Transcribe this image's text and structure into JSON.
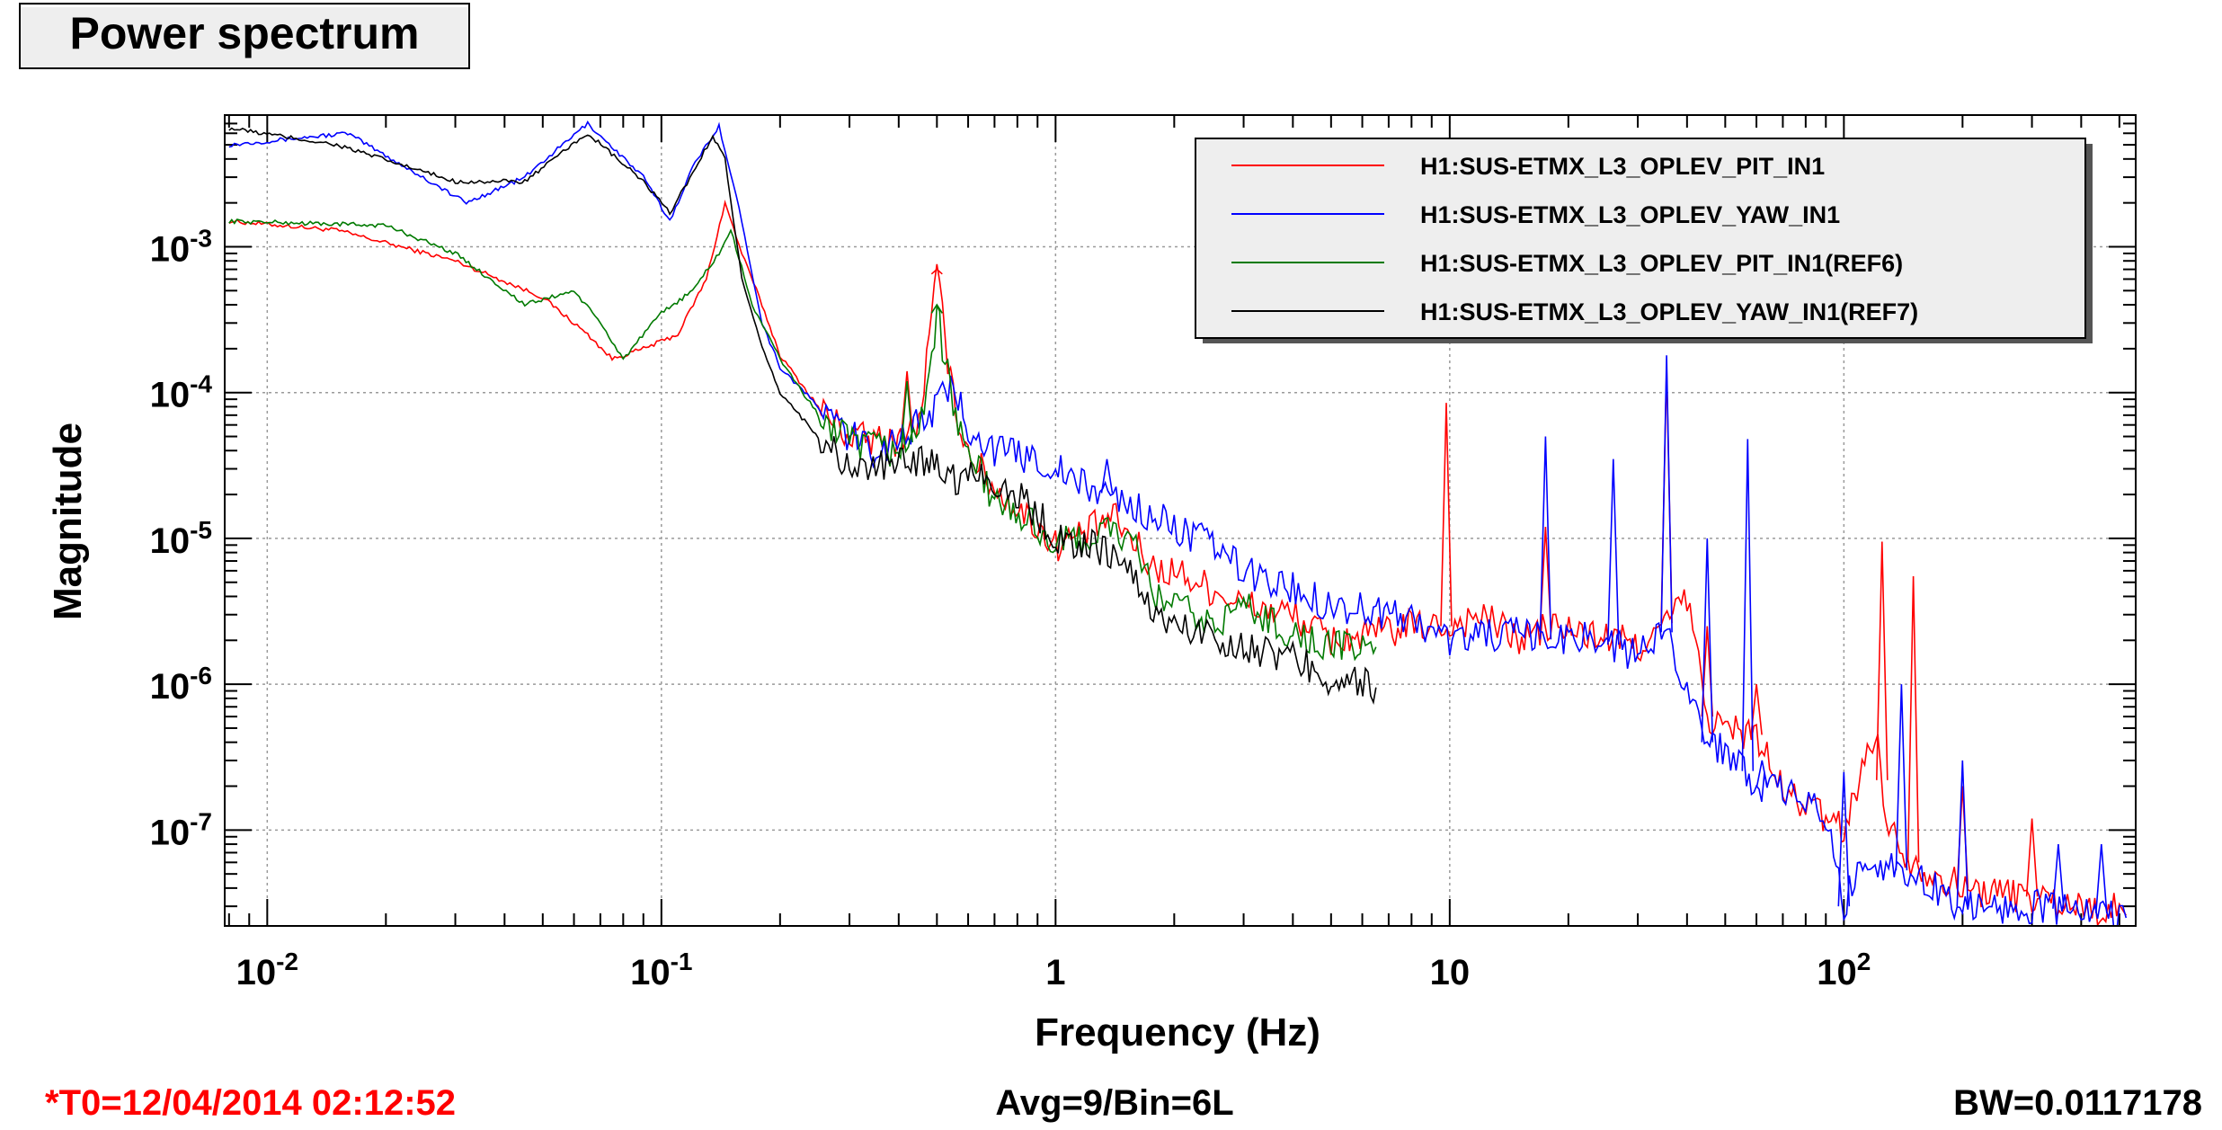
{
  "title": "Power spectrum",
  "footer": {
    "t0": "*T0=12/04/2014 02:12:52",
    "avg": "Avg=9/Bin=6L",
    "bw": "BW=0.0117178"
  },
  "colors": {
    "red": "#ff0000",
    "blue": "#0000ff",
    "green": "#007a00",
    "black": "#000000"
  },
  "chart_data": {
    "type": "line",
    "xlabel": "Frequency (Hz)",
    "ylabel": "Magnitude",
    "x_scale": "log",
    "y_scale": "log",
    "xlim": [
      0.0078,
      550
    ],
    "ylim": [
      2.2e-08,
      0.008
    ],
    "grid": true,
    "legend_position": "top-right",
    "x_ticks": [
      {
        "value": 0.01,
        "base": "10",
        "exp": "-2"
      },
      {
        "value": 0.1,
        "base": "10",
        "exp": "-1"
      },
      {
        "value": 1,
        "base": "1",
        "exp": ""
      },
      {
        "value": 10,
        "base": "10",
        "exp": ""
      },
      {
        "value": 100,
        "base": "10",
        "exp": "2"
      }
    ],
    "y_ticks": [
      {
        "value": 0.001,
        "base": "10",
        "exp": "-3"
      },
      {
        "value": 0.0001,
        "base": "10",
        "exp": "-4"
      },
      {
        "value": 1e-05,
        "base": "10",
        "exp": "-5"
      },
      {
        "value": 1e-06,
        "base": "10",
        "exp": "-6"
      },
      {
        "value": 1e-07,
        "base": "10",
        "exp": "-7"
      }
    ],
    "series": [
      {
        "name": "H1:SUS-ETMX_L3_OPLEV_PIT_IN1",
        "color": "#ff0000",
        "x": [
          0.008,
          0.015,
          0.03,
          0.05,
          0.065,
          0.075,
          0.09,
          0.11,
          0.13,
          0.145,
          0.16,
          0.18,
          0.2,
          0.25,
          0.3,
          0.38,
          0.45,
          0.5,
          0.55,
          0.6,
          0.7,
          0.9,
          1.0,
          1.2,
          1.4,
          1.6,
          1.8,
          2.0,
          2.5,
          3.0,
          4.0,
          5.0,
          6.5,
          8,
          10,
          12,
          15,
          18,
          22,
          27,
          30,
          35,
          40,
          45,
          50,
          60,
          70,
          80,
          90,
          100,
          120,
          130,
          150,
          200,
          300,
          400,
          500,
          520
        ],
        "y": [
          0.0015,
          0.0013,
          0.0008,
          0.00045,
          0.00025,
          0.00017,
          0.0002,
          0.00025,
          0.0006,
          0.002,
          0.0009,
          0.0004,
          0.00018,
          8e-05,
          5e-05,
          4.5e-05,
          6e-05,
          0.00065,
          9e-05,
          4e-05,
          2.2e-05,
          1.2e-05,
          9e-06,
          1.1e-05,
          1.4e-05,
          9e-06,
          6e-06,
          6e-06,
          4.5e-06,
          3.5e-06,
          3e-06,
          2e-06,
          2.2e-06,
          2.5e-06,
          2.5e-06,
          3e-06,
          2e-06,
          2.5e-06,
          2.2e-06,
          2e-06,
          1.8e-06,
          2.5e-06,
          4e-06,
          6e-07,
          5e-07,
          4.5e-07,
          1.8e-07,
          1.5e-07,
          1.2e-07,
          1e-07,
          5e-07,
          1e-07,
          6e-08,
          4e-08,
          3.5e-08,
          3e-08,
          2.8e-08,
          2.6e-08
        ],
        "peaks": [
          [
            0.5,
            0.0007
          ],
          [
            0.42,
            0.00014
          ],
          [
            9.8,
            8.5e-05
          ],
          [
            17.5,
            1.2e-05
          ],
          [
            35.5,
            0.00015
          ],
          [
            45,
            2.5e-06
          ],
          [
            60,
            1e-06
          ],
          [
            125,
            9.5e-06
          ],
          [
            150,
            5.5e-06
          ],
          [
            200,
            2e-07
          ],
          [
            300,
            1.2e-07
          ]
        ]
      },
      {
        "name": "H1:SUS-ETMX_L3_OPLEV_YAW_IN1",
        "color": "#0000ff",
        "x": [
          0.008,
          0.016,
          0.032,
          0.045,
          0.065,
          0.09,
          0.105,
          0.12,
          0.14,
          0.16,
          0.18,
          0.2,
          0.25,
          0.3,
          0.35,
          0.45,
          0.55,
          0.6,
          0.7,
          0.9,
          1.0,
          1.2,
          1.4,
          1.6,
          2.0,
          2.5,
          3.0,
          4.0,
          5.0,
          6.5,
          8,
          10,
          12,
          15,
          18,
          22,
          27,
          30,
          35,
          40,
          45,
          50,
          55,
          60,
          70,
          80,
          90,
          100,
          110,
          120,
          150,
          200,
          300,
          400,
          500,
          520
        ],
        "y": [
          0.005,
          0.006,
          0.002,
          0.003,
          0.007,
          0.003,
          0.0015,
          0.0035,
          0.0068,
          0.0015,
          0.0003,
          0.00015,
          8e-05,
          5e-05,
          4e-05,
          6e-05,
          0.00011,
          6e-05,
          4e-05,
          3.5e-05,
          3e-05,
          2.2e-05,
          2e-05,
          1.6e-05,
          1.2e-05,
          9e-06,
          6e-06,
          4.5e-06,
          3.5e-06,
          3.2e-06,
          2.8e-06,
          2e-06,
          2.2e-06,
          2.2e-06,
          2e-06,
          2.2e-06,
          1.8e-06,
          1.5e-06,
          2.5e-06,
          1e-06,
          4e-07,
          3.5e-07,
          3e-07,
          2e-07,
          1.8e-07,
          1.6e-07,
          1.2e-07,
          3e-08,
          6e-08,
          6e-08,
          5e-08,
          3e-08,
          3e-08,
          2.8e-08,
          2.6e-08,
          2.5e-08
        ],
        "peaks": [
          [
            1.35,
            3.5e-05
          ],
          [
            17.5,
            5e-05
          ],
          [
            26,
            3.5e-05
          ],
          [
            35.5,
            0.00018
          ],
          [
            45,
            1e-05
          ],
          [
            57,
            4.8e-05
          ],
          [
            62,
            3e-07
          ],
          [
            100,
            2.5e-07
          ],
          [
            140,
            1e-06
          ],
          [
            200,
            3e-07
          ],
          [
            350,
            8e-08
          ],
          [
            450,
            8e-08
          ]
        ]
      },
      {
        "name": "H1:SUS-ETMX_L3_OPLEV_PIT_IN1(REF6)",
        "color": "#007a00",
        "x": [
          0.008,
          0.02,
          0.03,
          0.045,
          0.06,
          0.07,
          0.08,
          0.1,
          0.12,
          0.14,
          0.15,
          0.17,
          0.2,
          0.25,
          0.3,
          0.38,
          0.45,
          0.5,
          0.55,
          0.6,
          0.7,
          0.9,
          1.0,
          1.2,
          1.4,
          1.6,
          1.8,
          2.0,
          2.5,
          3.0,
          4.0,
          5.0,
          6.5
        ],
        "y": [
          0.0015,
          0.0014,
          0.0009,
          0.0004,
          0.0005,
          0.0003,
          0.00017,
          0.00035,
          0.0005,
          0.0009,
          0.0013,
          0.0004,
          0.00017,
          7e-05,
          4.5e-05,
          4e-05,
          5e-05,
          0.00035,
          8e-05,
          4e-05,
          1.8e-05,
          1.2e-05,
          9e-06,
          1e-05,
          1.2e-05,
          8e-06,
          4e-06,
          3.5e-06,
          2.5e-06,
          3.5e-06,
          2.2e-06,
          1.8e-06,
          1.8e-06
        ],
        "peaks": [
          [
            0.5,
            0.0004
          ],
          [
            0.42,
            0.00012
          ]
        ]
      },
      {
        "name": "H1:SUS-ETMX_L3_OPLEV_YAW_IN1(REF7)",
        "color": "#000000",
        "x": [
          0.008,
          0.015,
          0.03,
          0.045,
          0.065,
          0.09,
          0.105,
          0.12,
          0.135,
          0.145,
          0.16,
          0.18,
          0.2,
          0.25,
          0.3,
          0.35,
          0.45,
          0.5,
          0.55,
          0.6,
          0.7,
          0.9,
          1.0,
          1.2,
          1.4,
          1.6,
          1.8,
          2.0,
          2.5,
          3.0,
          4.0,
          5.0,
          6.5
        ],
        "y": [
          0.0065,
          0.005,
          0.0028,
          0.0028,
          0.006,
          0.0028,
          0.0017,
          0.0032,
          0.0058,
          0.004,
          0.0006,
          0.0002,
          0.0001,
          5e-05,
          3e-05,
          3e-05,
          3.5e-05,
          3.5e-05,
          2.5e-05,
          3e-05,
          2.5e-05,
          1.5e-05,
          1e-05,
          9e-06,
          8e-06,
          5e-06,
          3e-06,
          2.5e-06,
          2.2e-06,
          1.8e-06,
          1.5e-06,
          1.1e-06,
          9.5e-07
        ],
        "peaks": []
      }
    ]
  }
}
